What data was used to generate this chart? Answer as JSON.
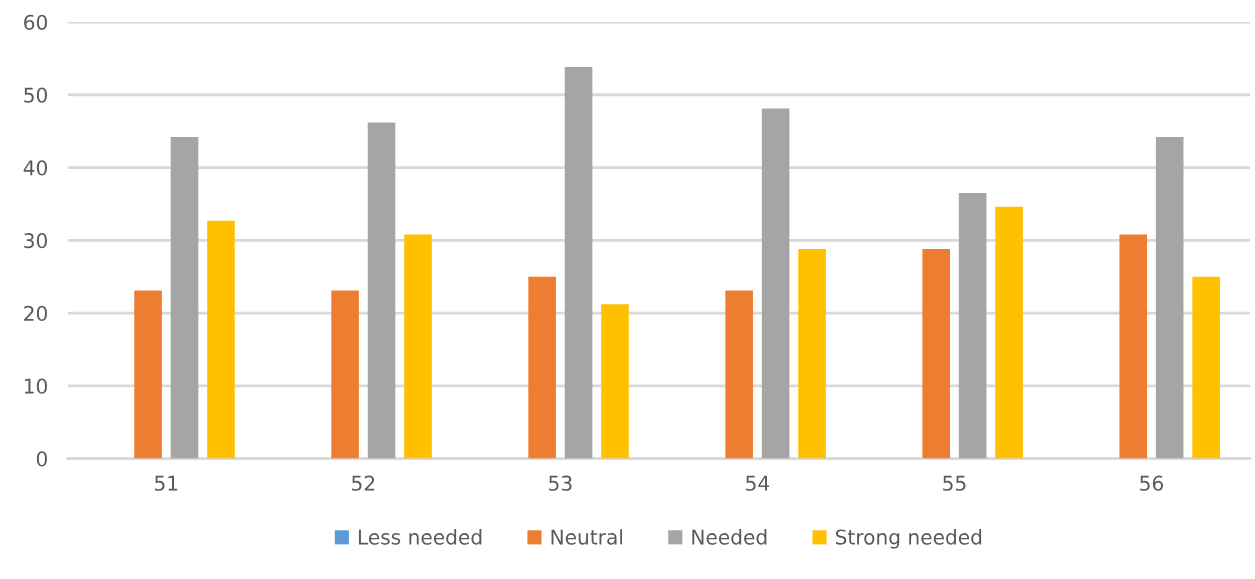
{
  "chart_data": {
    "type": "bar",
    "categories": [
      "51",
      "52",
      "53",
      "54",
      "55",
      "56"
    ],
    "series": [
      {
        "name": "Less needed",
        "color": "#5b9bd5",
        "values": [
          0,
          0,
          0,
          0,
          0,
          0
        ]
      },
      {
        "name": "Neutral",
        "color": "#ed7d31",
        "values": [
          23.1,
          23.1,
          25.0,
          23.1,
          28.8,
          30.8
        ]
      },
      {
        "name": "Needed",
        "color": "#a5a5a5",
        "values": [
          44.2,
          46.2,
          53.8,
          48.1,
          36.5,
          44.2
        ]
      },
      {
        "name": "Strong needed",
        "color": "#ffc000",
        "values": [
          32.7,
          30.8,
          21.2,
          28.8,
          34.6,
          25.0
        ]
      }
    ],
    "ylim": [
      0,
      60
    ],
    "yticks": [
      0,
      10,
      20,
      30,
      40,
      50,
      60
    ],
    "grid": "y",
    "legend": "bottom"
  }
}
